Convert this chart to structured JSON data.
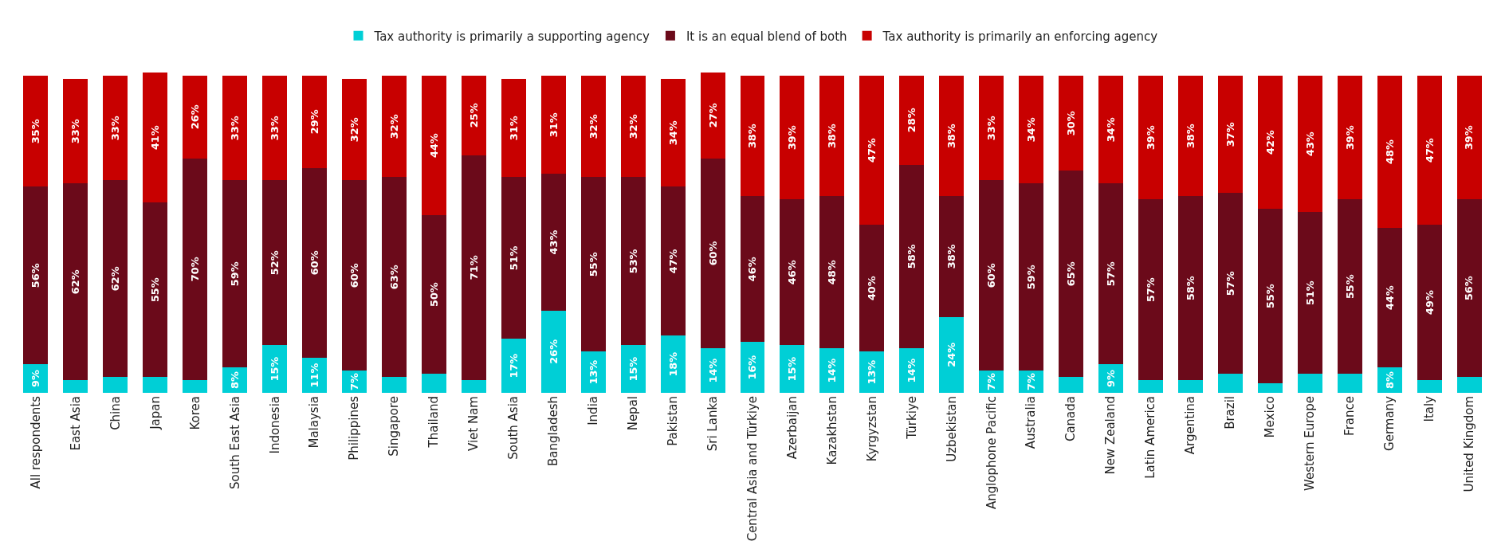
{
  "chart_data": {
    "type": "bar",
    "stacked": true,
    "legend": "top",
    "categories": [
      "All respondents",
      "East Asia",
      "China",
      "Japan",
      "Korea",
      "South East Asia",
      "Indonesia",
      "Malaysia",
      "Philippines",
      "Singapore",
      "Thailand",
      "Viet Nam",
      "South Asia",
      "Bangladesh",
      "India",
      "Nepal",
      "Pakistan",
      "Sri Lanka",
      "Central Asia and Türkiye",
      "Azerbaijan",
      "Kazakhstan",
      "Kyrgyzstan",
      "Türkiye",
      "Uzbekistan",
      "Anglophone Pacific",
      "Australia",
      "Canada",
      "New Zealand",
      "Latin America",
      "Argentina",
      "Brazil",
      "Mexico",
      "Western Europe",
      "France",
      "Germany",
      "Italy",
      "United Kingdom"
    ],
    "series": [
      {
        "name": "Tax authority is primarily a supporting agency",
        "color": "#00cfd6",
        "values": [
          9,
          4,
          5,
          5,
          4,
          8,
          15,
          11,
          7,
          5,
          6,
          4,
          17,
          26,
          13,
          15,
          18,
          14,
          16,
          15,
          14,
          13,
          14,
          24,
          7,
          7,
          5,
          9,
          4,
          4,
          6,
          3,
          6,
          6,
          8,
          4,
          5
        ],
        "value_labels": [
          "9%",
          null,
          null,
          null,
          null,
          "8%",
          "15%",
          "11%",
          "7%",
          null,
          null,
          null,
          "17%",
          "26%",
          "13%",
          "15%",
          "18%",
          "14%",
          "16%",
          "15%",
          "14%",
          "13%",
          "14%",
          "24%",
          "7%",
          "7%",
          null,
          "9%",
          null,
          null,
          null,
          null,
          null,
          null,
          "8%",
          null,
          null
        ]
      },
      {
        "name": "It is an equal blend of both",
        "color": "#6b0a1a",
        "values": [
          56,
          62,
          62,
          55,
          70,
          59,
          52,
          60,
          60,
          63,
          50,
          71,
          51,
          43,
          55,
          53,
          47,
          60,
          46,
          46,
          48,
          40,
          58,
          38,
          60,
          59,
          65,
          57,
          57,
          58,
          57,
          55,
          51,
          55,
          44,
          49,
          56
        ],
        "value_labels": [
          "56%",
          "62%",
          "62%",
          "55%",
          "70%",
          "59%",
          "52%",
          "60%",
          "60%",
          "63%",
          "50%",
          "71%",
          "51%",
          "43%",
          "55%",
          "53%",
          "47%",
          "60%",
          "46%",
          "46%",
          "48%",
          "40%",
          "58%",
          "38%",
          "60%",
          "59%",
          "65%",
          "57%",
          "57%",
          "58%",
          "57%",
          "55%",
          "51%",
          "55%",
          "44%",
          "49%",
          "56%"
        ]
      },
      {
        "name": "Tax authority is primarily an enforcing agency",
        "color": "#c80000",
        "values": [
          35,
          33,
          33,
          41,
          26,
          33,
          33,
          29,
          32,
          32,
          44,
          25,
          31,
          31,
          32,
          32,
          34,
          27,
          38,
          39,
          38,
          47,
          28,
          38,
          33,
          34,
          30,
          34,
          39,
          38,
          37,
          42,
          43,
          39,
          48,
          47,
          39
        ],
        "value_labels": [
          "35%",
          "33%",
          "33%",
          "41%",
          "26%",
          "33%",
          "33%",
          "29%",
          "32%",
          "32%",
          "44%",
          "25%",
          "31%",
          "31%",
          "32%",
          "32%",
          "34%",
          "27%",
          "38%",
          "39%",
          "38%",
          "47%",
          "28%",
          "38%",
          "33%",
          "34%",
          "30%",
          "34%",
          "39%",
          "38%",
          "37%",
          "42%",
          "43%",
          "39%",
          "48%",
          "47%",
          "39%"
        ]
      }
    ]
  }
}
